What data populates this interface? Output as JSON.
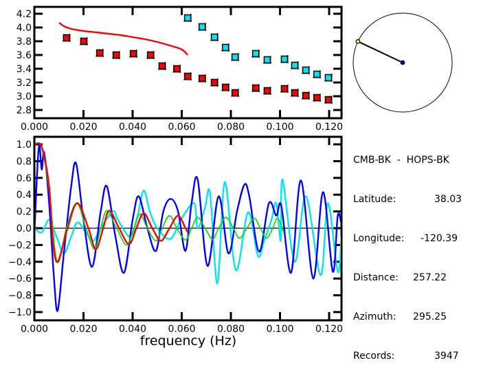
{
  "chart_data": [
    {
      "type": "scatter",
      "title": "",
      "xlabel": "",
      "ylabel": "",
      "xlim": [
        0.0,
        0.125
      ],
      "ylim": [
        2.7,
        4.3
      ],
      "x_ticks": [
        "0.000",
        "0.020",
        "0.040",
        "0.060",
        "0.080",
        "0.100",
        "0.120"
      ],
      "x_tick_values": [
        0.0,
        0.02,
        0.04,
        0.06,
        0.08,
        0.1,
        0.12
      ],
      "y_ticks": [
        "2.8",
        "3.0",
        "3.2",
        "3.4",
        "3.6",
        "3.8",
        "4.0",
        "4.2"
      ],
      "y_tick_values": [
        2.8,
        3.0,
        3.2,
        3.4,
        3.6,
        3.8,
        4.0,
        4.2
      ],
      "series": [
        {
          "name": "red-points",
          "kind": "points",
          "color": "#ff0000",
          "x": [
            0.0131,
            0.0201,
            0.0266,
            0.0333,
            0.0403,
            0.0473,
            0.052,
            0.058,
            0.0624,
            0.0683,
            0.0733,
            0.0778,
            0.0817,
            0.0901,
            0.0948,
            0.1018,
            0.106,
            0.1105,
            0.115,
            0.1197
          ],
          "y": [
            3.85,
            3.8,
            3.63,
            3.6,
            3.62,
            3.6,
            3.44,
            3.4,
            3.29,
            3.26,
            3.2,
            3.13,
            3.05,
            3.12,
            3.08,
            3.11,
            3.05,
            3.01,
            2.98,
            2.95
          ]
        },
        {
          "name": "cyan-points",
          "kind": "points",
          "color": "#00e5ee",
          "x": [
            0.0624,
            0.0683,
            0.0733,
            0.0778,
            0.0817,
            0.0901,
            0.0948,
            0.1018,
            0.106,
            0.1105,
            0.115,
            0.1197
          ],
          "y": [
            4.14,
            4.01,
            3.86,
            3.71,
            3.57,
            3.62,
            3.53,
            3.54,
            3.45,
            3.38,
            3.32,
            3.27
          ]
        },
        {
          "name": "red-curve",
          "kind": "line",
          "color": "#ff0000",
          "x": [
            0.0101,
            0.012,
            0.015,
            0.02,
            0.025,
            0.03,
            0.035,
            0.04,
            0.045,
            0.05,
            0.055,
            0.06,
            0.0624
          ],
          "y": [
            4.07,
            4.02,
            3.98,
            3.95,
            3.93,
            3.91,
            3.89,
            3.86,
            3.83,
            3.79,
            3.74,
            3.68,
            3.6
          ]
        }
      ]
    },
    {
      "type": "line",
      "title": "",
      "xlabel": "frequency (Hz)",
      "ylabel": "",
      "xlim": [
        0.0,
        0.125
      ],
      "ylim": [
        -1.1,
        1.1
      ],
      "x_ticks": [
        "0.000",
        "0.020",
        "0.040",
        "0.060",
        "0.080",
        "0.100",
        "0.120"
      ],
      "x_tick_values": [
        0.0,
        0.02,
        0.04,
        0.06,
        0.08,
        0.1,
        0.12
      ],
      "y_ticks": [
        "-1.0",
        "-0.8",
        "-0.6",
        "-0.4",
        "-0.2",
        "0.0",
        "0.2",
        "0.4",
        "0.6",
        "0.8",
        "1.0"
      ],
      "y_tick_values": [
        -1.0,
        -0.8,
        -0.6,
        -0.4,
        -0.2,
        0.0,
        0.2,
        0.4,
        0.6,
        0.8,
        1.0
      ],
      "zero_line": true,
      "series": [
        {
          "name": "cyan",
          "color": "#00e5ee",
          "x": [
            0.0,
            0.003,
            0.006,
            0.009,
            0.012,
            0.015,
            0.0175,
            0.021,
            0.024,
            0.027,
            0.032,
            0.034,
            0.039,
            0.042,
            0.0445,
            0.047,
            0.05,
            0.055,
            0.058,
            0.06,
            0.065,
            0.0665,
            0.0695,
            0.0715,
            0.0745,
            0.0775,
            0.082,
            0.087,
            0.091,
            0.0935,
            0.0965,
            0.0985,
            0.1003,
            0.101,
            0.106,
            0.1105,
            0.1165,
            0.1195,
            0.1235,
            0.125
          ],
          "y": [
            0.0,
            -0.05,
            0.1,
            -0.1,
            -0.3,
            -0.1,
            0.07,
            -0.05,
            -0.15,
            0.0,
            0.2,
            0.1,
            -0.1,
            0.15,
            0.45,
            0.2,
            0.0,
            -0.13,
            0.0,
            0.12,
            0.3,
            0.0,
            0.25,
            0.42,
            -0.66,
            0.55,
            -0.5,
            0.19,
            -0.33,
            -0.15,
            0.1,
            0.3,
            -0.15,
            0.58,
            -0.4,
            0.38,
            -0.56,
            0.3,
            -0.52,
            -0.1
          ]
        },
        {
          "name": "blue",
          "color": "#0000ff",
          "x": [
            0.0,
            0.001,
            0.002,
            0.003,
            0.004,
            0.006,
            0.008,
            0.0095,
            0.012,
            0.015,
            0.017,
            0.02,
            0.0235,
            0.027,
            0.0295,
            0.033,
            0.0365,
            0.04,
            0.0425,
            0.046,
            0.0495,
            0.0525,
            0.0555,
            0.0585,
            0.0615,
            0.064,
            0.0665,
            0.0705,
            0.075,
            0.079,
            0.0825,
            0.0855,
            0.0875,
            0.0915,
            0.0955,
            0.0985,
            0.1005,
            0.1045,
            0.1085,
            0.1135,
            0.1175,
            0.1215,
            0.1235,
            0.125
          ],
          "y": [
            -0.1,
            0.6,
            1.0,
            0.7,
            0.9,
            0.3,
            -0.6,
            -0.98,
            -0.3,
            0.5,
            0.77,
            0.1,
            -0.46,
            0.2,
            0.5,
            -0.1,
            -0.53,
            0.1,
            0.38,
            0.0,
            -0.27,
            0.2,
            0.35,
            0.2,
            -0.27,
            0.3,
            0.58,
            -0.45,
            0.38,
            -0.3,
            0.2,
            0.52,
            0.38,
            -0.28,
            0.3,
            0.15,
            0.27,
            -0.53,
            0.57,
            -0.6,
            0.43,
            -0.52,
            0.15,
            0.05
          ]
        },
        {
          "name": "green",
          "color": "#00dd00",
          "x": [
            0.0,
            0.003,
            0.006,
            0.0093,
            0.013,
            0.0172,
            0.021,
            0.0245,
            0.027,
            0.0295,
            0.0335,
            0.0375,
            0.0405,
            0.043,
            0.046,
            0.0495,
            0.052,
            0.055,
            0.058,
            0.0615,
            0.064,
            0.0665,
            0.0695,
            0.0725,
            0.075,
            0.078,
            0.081,
            0.0835,
            0.0865,
            0.0895,
            0.092,
            0.0945,
            0.097,
            0.099,
            0.1015
          ],
          "y": [
            1.0,
            0.96,
            0.45,
            -0.4,
            0.0,
            0.3,
            0.0,
            -0.25,
            0.0,
            0.21,
            0.0,
            -0.2,
            0.0,
            0.17,
            0.0,
            -0.15,
            0.0,
            0.15,
            0.0,
            -0.14,
            0.0,
            0.13,
            0.0,
            -0.13,
            0.0,
            0.13,
            0.0,
            -0.12,
            0.0,
            0.12,
            0.0,
            -0.12,
            0.0,
            0.12,
            -0.05
          ]
        },
        {
          "name": "red",
          "color": "#ff0000",
          "x": [
            0.0,
            0.003,
            0.006,
            0.0075,
            0.0095,
            0.0135,
            0.0175,
            0.022,
            0.025,
            0.028,
            0.0305,
            0.0345,
            0.0385,
            0.0415,
            0.0445,
            0.048,
            0.0515,
            0.055,
            0.0585,
            0.0615,
            0.0625
          ],
          "y": [
            1.0,
            0.97,
            0.5,
            -0.15,
            -0.4,
            0.0,
            0.3,
            0.0,
            -0.25,
            0.0,
            0.21,
            0.0,
            -0.19,
            0.0,
            0.18,
            0.0,
            -0.15,
            0.0,
            0.15,
            0.0,
            -0.05
          ]
        }
      ]
    }
  ],
  "map": {
    "azimuth_deg": 295.25
  },
  "info": {
    "pair": "CMB-BK  -  HOPS-BK",
    "latitude_label": "Latitude:",
    "latitude_value": "38.03",
    "longitude_label": "Longitude:",
    "longitude_value": "-120.39",
    "distance_label": "Distance:",
    "distance_value": "257.22",
    "azimuth_label": "Azimuth:",
    "azimuth_value": "295.25",
    "records_label": "Records:",
    "records_value": "3947"
  }
}
